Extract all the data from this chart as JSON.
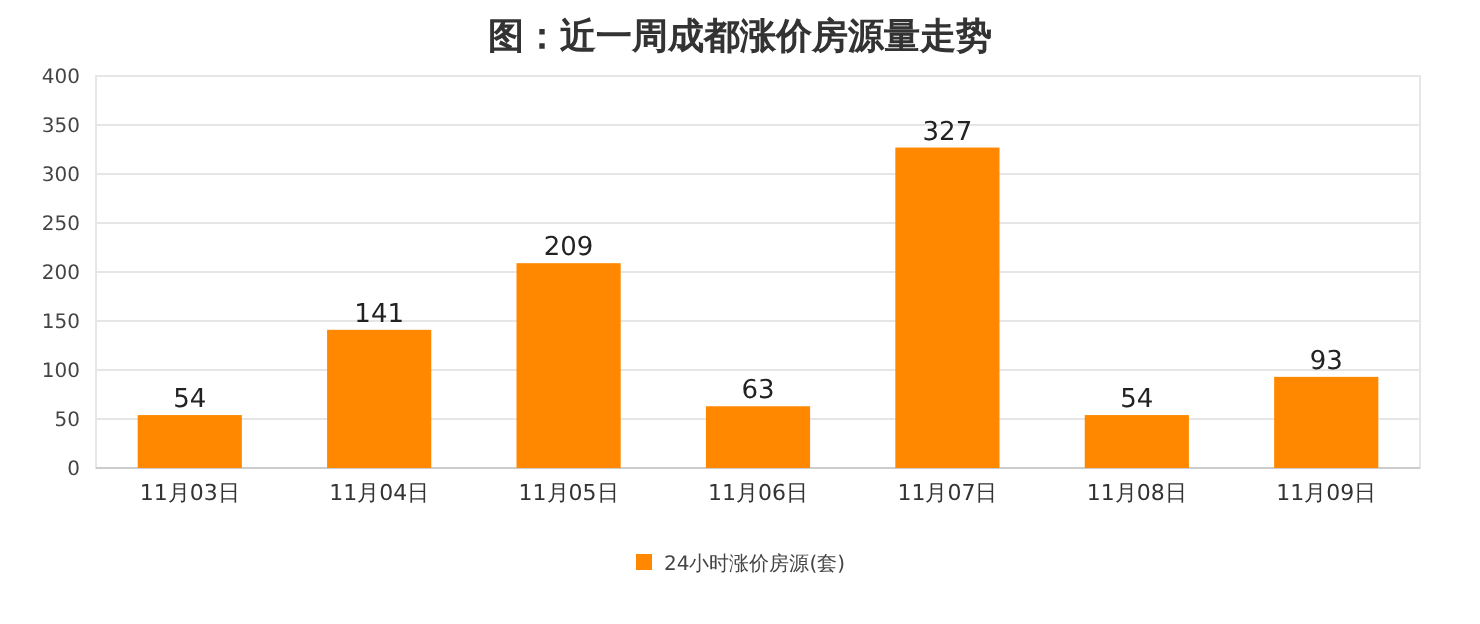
{
  "chart_data": {
    "type": "bar",
    "title": "图：近一周成都涨价房源量走势",
    "categories": [
      "11月03日",
      "11月04日",
      "11月05日",
      "11月06日",
      "11月07日",
      "11月08日",
      "11月09日"
    ],
    "series": [
      {
        "name": "24小时涨价房源(套)",
        "color": "#ff8800",
        "values": [
          54,
          141,
          209,
          63,
          327,
          54,
          93
        ]
      }
    ],
    "ylim": [
      0,
      400
    ],
    "yticks": [
      0,
      50,
      100,
      150,
      200,
      250,
      300,
      350,
      400
    ],
    "grid": "y",
    "legend": "bottom",
    "data_labels": true
  }
}
